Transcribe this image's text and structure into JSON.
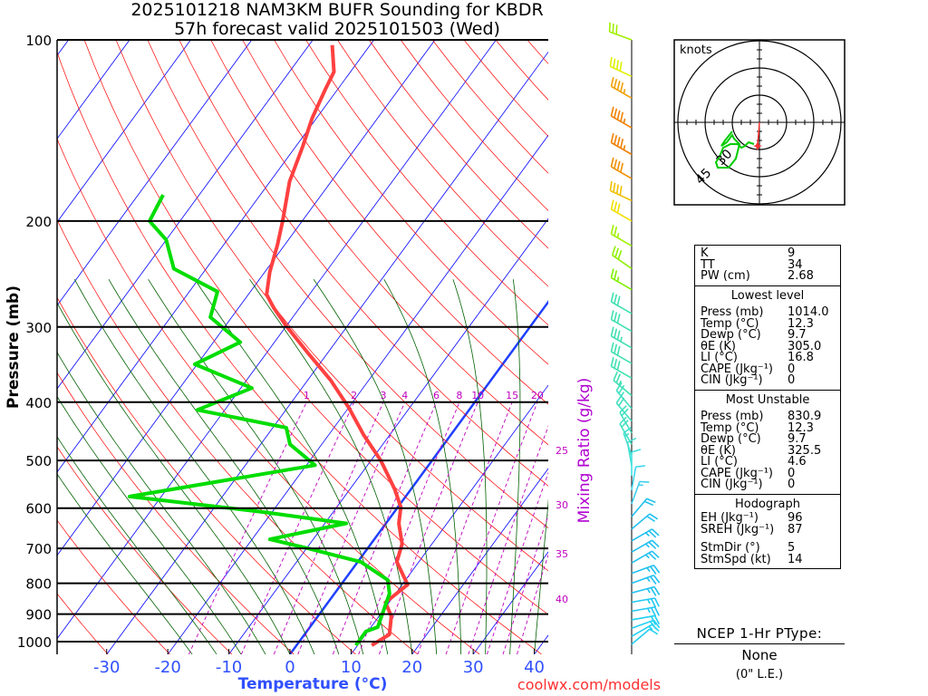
{
  "title_line1": "2025101218 NAM3KM BUFR Sounding for KBDR",
  "title_line2": "57h forecast valid 2025101503 (Wed)",
  "watermark": "coolwx.com/models",
  "chart_data": {
    "type": "line",
    "subtype": "skew-t log-p",
    "xlabel": "Temperature (°C)",
    "ylabel": "Pressure (mb)",
    "y2label": "Mixing Ratio (g/kg)",
    "pressure_ticks": [
      100,
      200,
      300,
      400,
      500,
      600,
      700,
      800,
      900,
      1000
    ],
    "temperature_ticks": [
      -30,
      -20,
      -10,
      0,
      10,
      20,
      30,
      40
    ],
    "mixing_ratio_labels": [
      1,
      2,
      3,
      4,
      6,
      8,
      10,
      15,
      20,
      25,
      30,
      35,
      40
    ],
    "ylim": [
      1050,
      100
    ],
    "xlim": [
      -38,
      42
    ],
    "colors": {
      "temperature": "#ff4040",
      "dewpoint": "#00dd00",
      "isotherm": "#0000ff",
      "zero_isotherm": "#2040ff",
      "dry_adiabat": "#ff0000",
      "moist_adiabat": "#006000",
      "mixing_ratio": "#c000c0"
    },
    "series": [
      {
        "name": "Temperature",
        "points": [
          [
            1014,
            12.3
          ],
          [
            973,
            13.9
          ],
          [
            907,
            12.0
          ],
          [
            861,
            9.4
          ],
          [
            804,
            10.9
          ],
          [
            737,
            6.4
          ],
          [
            688,
            5.1
          ],
          [
            636,
            2.1
          ],
          [
            598,
            0.5
          ],
          [
            559,
            -2.6
          ],
          [
            500,
            -8.4
          ],
          [
            454,
            -14.2
          ],
          [
            409,
            -19.9
          ],
          [
            368,
            -26.2
          ],
          [
            332,
            -33.1
          ],
          [
            299,
            -40.0
          ],
          [
            279,
            -44.2
          ],
          [
            265,
            -47.0
          ],
          [
            243,
            -49.2
          ],
          [
            219,
            -51.2
          ],
          [
            200,
            -53.2
          ],
          [
            172,
            -56.8
          ],
          [
            150,
            -58.9
          ],
          [
            135,
            -60.7
          ],
          [
            121,
            -62.0
          ],
          [
            113,
            -62.7
          ],
          [
            102,
            -66.2
          ]
        ]
      },
      {
        "name": "Dewpoint",
        "points": [
          [
            1014,
            9.7
          ],
          [
            962,
            9.7
          ],
          [
            946,
            11.1
          ],
          [
            832,
            9.0
          ],
          [
            790,
            7.1
          ],
          [
            737,
            0.5
          ],
          [
            700,
            -9.8
          ],
          [
            676,
            -17.1
          ],
          [
            636,
            -6.5
          ],
          [
            609,
            -21.5
          ],
          [
            574,
            -45.2
          ],
          [
            509,
            -18.6
          ],
          [
            470,
            -25.2
          ],
          [
            441,
            -27.8
          ],
          [
            412,
            -44.5
          ],
          [
            379,
            -38.2
          ],
          [
            346,
            -50.4
          ],
          [
            318,
            -45.6
          ],
          [
            289,
            -53.5
          ],
          [
            262,
            -55.4
          ],
          [
            240,
            -65.3
          ],
          [
            215,
            -70.0
          ],
          [
            200,
            -75.0
          ],
          [
            181,
            -75.9
          ]
        ]
      }
    ],
    "winds": [
      [
        100,
        290,
        30,
        "#a0f000"
      ],
      [
        115,
        295,
        40,
        "#e0f000"
      ],
      [
        125,
        300,
        45,
        "#f0a000"
      ],
      [
        140,
        300,
        45,
        "#f08000"
      ],
      [
        155,
        300,
        45,
        "#f08000"
      ],
      [
        170,
        300,
        40,
        "#f09000"
      ],
      [
        185,
        295,
        40,
        "#f0c000"
      ],
      [
        200,
        300,
        30,
        "#f0e000"
      ],
      [
        220,
        300,
        25,
        "#a0f000"
      ],
      [
        240,
        305,
        30,
        "#90f000"
      ],
      [
        260,
        300,
        25,
        "#80f000"
      ],
      [
        285,
        300,
        30,
        "#40e0b0"
      ],
      [
        305,
        300,
        30,
        "#40e0b0"
      ],
      [
        325,
        300,
        35,
        "#40e0b0"
      ],
      [
        345,
        300,
        30,
        "#40e0b0"
      ],
      [
        365,
        300,
        30,
        "#40e0b0"
      ],
      [
        390,
        310,
        25,
        "#40e0b0"
      ],
      [
        410,
        320,
        25,
        "#40e0c0"
      ],
      [
        430,
        320,
        20,
        "#40e0c0"
      ],
      [
        450,
        330,
        20,
        "#40e0c0"
      ],
      [
        470,
        330,
        20,
        "#40e0c0"
      ],
      [
        490,
        340,
        15,
        "#40e0d0"
      ],
      [
        510,
        350,
        10,
        "#40e0d0"
      ],
      [
        530,
        0,
        10,
        "#40e0e0"
      ],
      [
        560,
        10,
        10,
        "#40d8f0"
      ],
      [
        590,
        20,
        15,
        "#40d0f0"
      ],
      [
        620,
        40,
        20,
        "#20c0f0"
      ],
      [
        650,
        50,
        20,
        "#20c0f0"
      ],
      [
        680,
        60,
        25,
        "#20c0f0"
      ],
      [
        710,
        60,
        25,
        "#20c0f0"
      ],
      [
        740,
        60,
        25,
        "#20c0f0"
      ],
      [
        770,
        70,
        25,
        "#20c0f0"
      ],
      [
        800,
        70,
        25,
        "#20c0f0"
      ],
      [
        830,
        75,
        25,
        "#20c0f0"
      ],
      [
        860,
        80,
        25,
        "#20c8f0"
      ],
      [
        890,
        80,
        25,
        "#20c8f0"
      ],
      [
        920,
        80,
        20,
        "#20d0f0"
      ],
      [
        950,
        70,
        20,
        "#20d0f0"
      ],
      [
        980,
        60,
        15,
        "#20d0f0"
      ],
      [
        1010,
        50,
        10,
        "#20d0f0"
      ]
    ]
  },
  "hodograph": {
    "unit_label": "knots",
    "ring_labels": [
      "30",
      "45"
    ],
    "rings_kt": [
      15,
      30,
      45
    ],
    "trace_uv_kt": [
      [
        -3,
        -12
      ],
      [
        -6,
        -11
      ],
      [
        -8,
        -13
      ],
      [
        -10,
        -14
      ],
      [
        -12,
        -12
      ],
      [
        -16,
        -12
      ],
      [
        -20,
        -14
      ],
      [
        -22,
        -19
      ],
      [
        -24,
        -22
      ],
      [
        -23,
        -25
      ],
      [
        -17,
        -25
      ],
      [
        -13,
        -20
      ],
      [
        -11,
        -12
      ],
      [
        -14,
        -9
      ],
      [
        -15,
        -7
      ],
      [
        -18,
        -11
      ],
      [
        -21,
        -13
      ],
      [
        -19,
        -10
      ],
      [
        -15,
        -5
      ]
    ],
    "storm_motion_uv_kt": [
      -1,
      -13
    ]
  },
  "indices": {
    "top": [
      {
        "k": "K",
        "v": "9"
      },
      {
        "k": "TT",
        "v": "34"
      },
      {
        "k": "PW (cm)",
        "v": "2.68"
      }
    ],
    "lowest_title": "Lowest level",
    "lowest": [
      {
        "k": "Press (mb)",
        "v": "1014.0"
      },
      {
        "k": "Temp (°C)",
        "v": "12.3"
      },
      {
        "k": "Dewp (°C)",
        "v": "9.7"
      },
      {
        "k": "θE (K)",
        "v": "305.0"
      },
      {
        "k": "LI (°C)",
        "v": "16.8"
      },
      {
        "k": "CAPE (Jkg⁻¹)",
        "v": "0"
      },
      {
        "k": "CIN (Jkg⁻¹)",
        "v": "0"
      }
    ],
    "mu_title": "Most Unstable",
    "mu": [
      {
        "k": "Press (mb)",
        "v": "830.9"
      },
      {
        "k": "Temp (°C)",
        "v": "12.3"
      },
      {
        "k": "Dewp (°C)",
        "v": "9.7"
      },
      {
        "k": "θE (K)",
        "v": "325.5"
      },
      {
        "k": "LI (°C)",
        "v": "4.6"
      },
      {
        "k": "CAPE (Jkg⁻¹)",
        "v": "0"
      },
      {
        "k": "CIN (Jkg⁻¹)",
        "v": "0"
      }
    ],
    "hodo_title": "Hodograph",
    "hodo": [
      {
        "k": "EH (Jkg⁻¹)",
        "v": "96"
      },
      {
        "k": "SREH (Jkg⁻¹)",
        "v": "87"
      },
      {
        "k": "StmDir (°)",
        "v": "5"
      },
      {
        "k": "StmSpd (kt)",
        "v": "14"
      }
    ]
  },
  "ptype": {
    "title": "NCEP 1-Hr PType:",
    "value": "None",
    "sub": "(0\" L.E.)"
  }
}
